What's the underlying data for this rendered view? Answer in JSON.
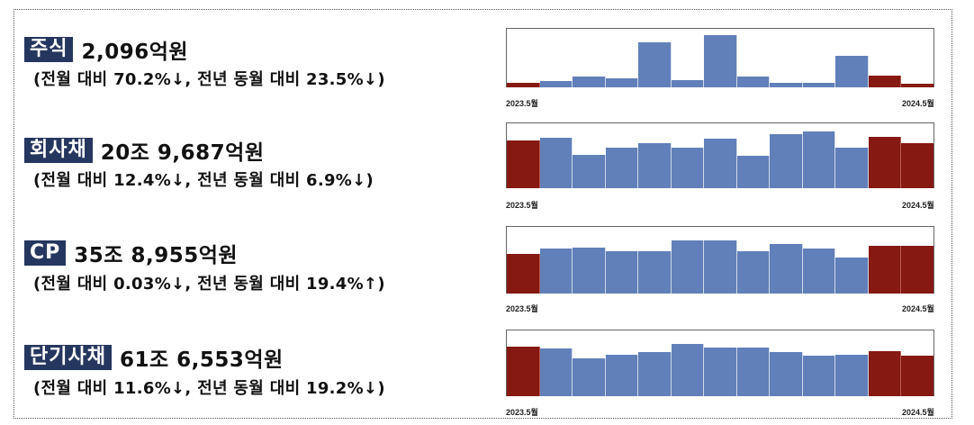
{
  "colors": {
    "badge_bg": "#26375f",
    "bar_normal": "#6180b9",
    "bar_highlight": "#861912"
  },
  "x_labels": {
    "start": "2023.5월",
    "end": "2024.5월"
  },
  "sections": [
    {
      "label": "주식",
      "amount": "2,096억원",
      "change": "(전월 대비 70.2%↓, 전년 동월 대비 23.5%↓)"
    },
    {
      "label": "회사채",
      "amount": "20조 9,687억원",
      "change": "(전월 대비 12.4%↓, 전년 동월 대비 6.9%↓)"
    },
    {
      "label": "CP",
      "amount": "35조 8,955억원",
      "change": "(전월 대비 0.03%↓, 전년 동월 대비 19.4%↑)"
    },
    {
      "label": "단기사채",
      "amount": "61조 6,553억원",
      "change": "(전월 대비 11.6%↓, 전년 동월 대비 19.2%↓)"
    }
  ],
  "chart_data": [
    {
      "type": "bar",
      "title": "주식",
      "categories": [
        "2023.5",
        "2023.6",
        "2023.7",
        "2023.8",
        "2023.9",
        "2023.10",
        "2023.11",
        "2023.12",
        "2024.1",
        "2024.2",
        "2024.3",
        "2024.4",
        "2024.5"
      ],
      "values": [
        8,
        11,
        19,
        16,
        77,
        12,
        89,
        19,
        8,
        7,
        54,
        20,
        6
      ],
      "highlighted": [
        0,
        11,
        12
      ],
      "xlabel": "",
      "ylabel": "",
      "tick_labels": [
        "2023.5월",
        "2024.5월"
      ],
      "value_unit": "relative % of plot height",
      "ylim": [
        0,
        100
      ],
      "grid": false,
      "legend": "none"
    },
    {
      "type": "bar",
      "title": "회사채",
      "categories": [
        "2023.5",
        "2023.6",
        "2023.7",
        "2023.8",
        "2023.9",
        "2023.10",
        "2023.11",
        "2023.12",
        "2024.1",
        "2024.2",
        "2024.3",
        "2024.4",
        "2024.5"
      ],
      "values": [
        74,
        78,
        51,
        63,
        69,
        62,
        77,
        50,
        83,
        87,
        62,
        79,
        69
      ],
      "highlighted": [
        0,
        11,
        12
      ],
      "xlabel": "",
      "ylabel": "",
      "tick_labels": [
        "2023.5월",
        "2024.5월"
      ],
      "value_unit": "relative % of plot height",
      "ylim": [
        0,
        100
      ],
      "grid": false,
      "legend": "none"
    },
    {
      "type": "bar",
      "title": "CP",
      "categories": [
        "2023.5",
        "2023.6",
        "2023.7",
        "2023.8",
        "2023.9",
        "2023.10",
        "2023.11",
        "2023.12",
        "2024.1",
        "2024.2",
        "2024.3",
        "2024.4",
        "2024.5"
      ],
      "values": [
        59,
        68,
        69,
        64,
        63,
        80,
        80,
        64,
        74,
        68,
        54,
        71,
        71
      ],
      "highlighted": [
        0,
        11,
        12
      ],
      "xlabel": "",
      "ylabel": "",
      "tick_labels": [
        "2023.5월",
        "2024.5월"
      ],
      "value_unit": "relative % of plot height",
      "ylim": [
        0,
        100
      ],
      "grid": false,
      "legend": "none"
    },
    {
      "type": "bar",
      "title": "단기사채",
      "categories": [
        "2023.5",
        "2023.6",
        "2023.7",
        "2023.8",
        "2023.9",
        "2023.10",
        "2023.11",
        "2023.12",
        "2024.1",
        "2024.2",
        "2024.3",
        "2024.4",
        "2024.5"
      ],
      "values": [
        76,
        72,
        58,
        63,
        67,
        79,
        74,
        74,
        67,
        62,
        63,
        69,
        62
      ],
      "highlighted": [
        0,
        11,
        12
      ],
      "xlabel": "",
      "ylabel": "",
      "tick_labels": [
        "2023.5월",
        "2024.5월"
      ],
      "value_unit": "relative % of plot height",
      "ylim": [
        0,
        100
      ],
      "grid": false,
      "legend": "none"
    }
  ]
}
